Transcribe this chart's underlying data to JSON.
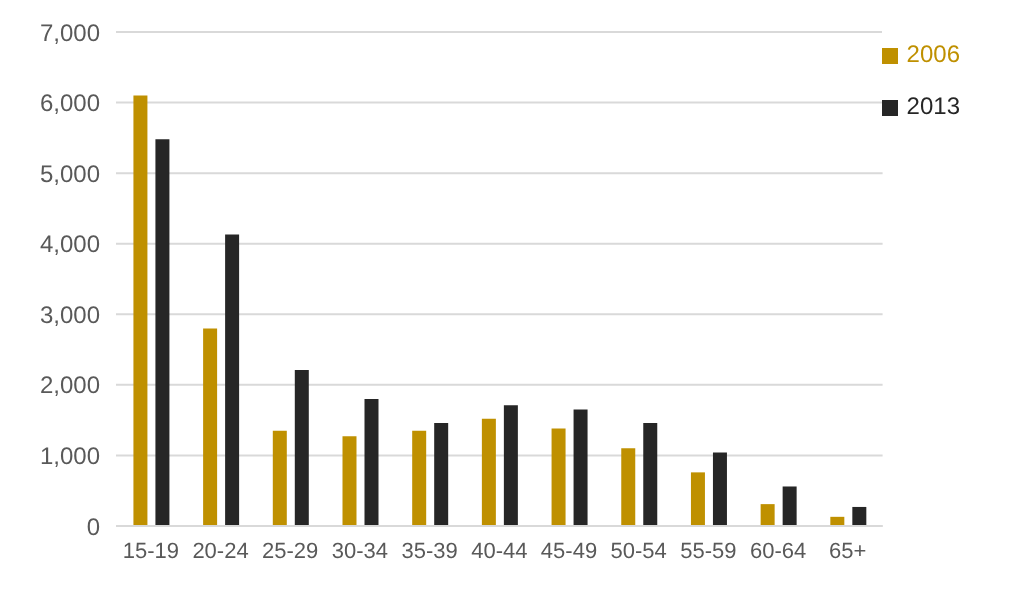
{
  "chart_data": {
    "type": "bar",
    "categories": [
      "15-19",
      "20-24",
      "25-29",
      "30-34",
      "35-39",
      "40-44",
      "45-49",
      "50-54",
      "55-59",
      "60-64",
      "65+"
    ],
    "series": [
      {
        "name": "2006",
        "color": "#bf9000",
        "values": [
          6100,
          2800,
          1350,
          1270,
          1350,
          1520,
          1380,
          1100,
          760,
          310,
          130
        ]
      },
      {
        "name": "2013",
        "color": "#262626",
        "values": [
          5480,
          4130,
          2210,
          1800,
          1460,
          1710,
          1650,
          1460,
          1040,
          560,
          270
        ]
      }
    ],
    "ylim": [
      0,
      7000
    ],
    "yticks": [
      0,
      {
        "value": 1000,
        "label": "1,000"
      },
      {
        "value": 2000,
        "label": "2,000"
      },
      {
        "value": 3000,
        "label": "3,000"
      },
      {
        "value": 4000,
        "label": "4,000"
      },
      {
        "value": 5000,
        "label": "5,000"
      },
      {
        "value": 6000,
        "label": "6,000"
      },
      {
        "value": 7000,
        "label": "7,000"
      }
    ],
    "grid": "y",
    "legend": "top right"
  }
}
